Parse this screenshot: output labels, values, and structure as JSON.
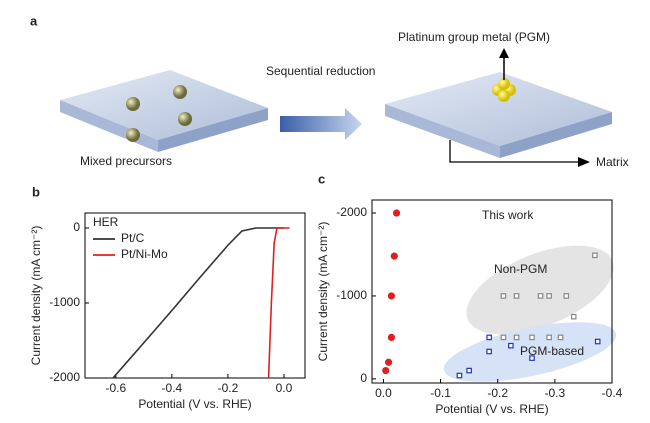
{
  "panel_a": {
    "label": "a",
    "arrow_text": "Sequential reduction",
    "pgm_text": "Platinum group metal (PGM)",
    "left_text": "Mixed precursors",
    "matrix_text": "Matrix"
  },
  "chart_data": [
    {
      "type": "line",
      "label": "b",
      "xlabel": "Potential (V vs. RHE)",
      "ylabel": "Current density (mA cm⁻²)",
      "legend_title": "HER",
      "legend": "upper left",
      "xlim": [
        -0.71,
        0.075
      ],
      "xticks": [
        -0.6,
        -0.4,
        -0.2,
        {
          "value": 0,
          "label": "0.0"
        }
      ],
      "ylim": [
        -2000,
        200
      ],
      "yticks": [
        -2000,
        -1000,
        0
      ],
      "series": [
        {
          "name": "Pt/C",
          "color": "#333333",
          "x": [
            -0.61,
            -0.5,
            -0.4,
            -0.3,
            -0.2,
            -0.15,
            -0.1,
            -0.05,
            0
          ],
          "values": [
            -2000,
            -1530,
            -1100,
            -660,
            -230,
            -40,
            0,
            0,
            0
          ]
        },
        {
          "name": "Pt/Ni-Mo",
          "color": "#e02020",
          "x": [
            -0.055,
            -0.045,
            -0.035,
            -0.025,
            0.02
          ],
          "values": [
            -2000,
            -1000,
            -200,
            0,
            0
          ]
        }
      ]
    },
    {
      "type": "scatter",
      "label": "c",
      "xlabel": "Potential (V vs. RHE)",
      "ylabel": "Current density (mA cm⁻²)",
      "xlim": [
        0.02,
        -0.4
      ],
      "xticks": [
        {
          "value": 0,
          "label": "0.0"
        },
        -0.1,
        -0.2,
        -0.3,
        -0.4
      ],
      "ylim": [
        50,
        -2157
      ],
      "yticks": [
        0,
        -1000,
        -2000
      ],
      "series": [
        {
          "name": "This work",
          "color": "#e02020",
          "marker": "circle",
          "x": [
            -0.023,
            -0.019,
            -0.014,
            -0.014,
            -0.009,
            -0.004
          ],
          "values": [
            -2000,
            -1480,
            -1000,
            -500,
            -200,
            -100
          ]
        },
        {
          "name": "Non-PGM",
          "color": "#888888",
          "marker": "square",
          "x": [
            -0.21,
            -0.233,
            -0.275,
            -0.29,
            -0.32,
            -0.37,
            -0.333,
            -0.21,
            -0.233,
            -0.26,
            -0.29,
            -0.31
          ],
          "values": [
            -1000,
            -1000,
            -1000,
            -1000,
            -1000,
            -1490,
            -750,
            -500,
            -500,
            -500,
            -500,
            -500
          ]
        },
        {
          "name": "PGM-based",
          "color": "#2233cc",
          "marker": "square",
          "x": [
            -0.133,
            -0.15,
            -0.185,
            -0.185,
            -0.223,
            -0.26,
            -0.375
          ],
          "values": [
            -40,
            -100,
            -500,
            -330,
            -400,
            -250,
            -450
          ]
        }
      ]
    }
  ]
}
